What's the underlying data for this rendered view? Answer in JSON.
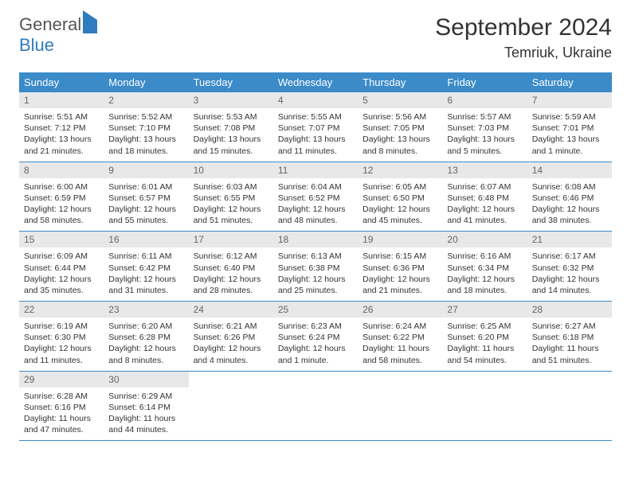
{
  "logo": {
    "part1": "General",
    "part2": "Blue"
  },
  "title": {
    "month": "September 2024",
    "location": "Temriuk, Ukraine"
  },
  "weekdays": [
    "Sunday",
    "Monday",
    "Tuesday",
    "Wednesday",
    "Thursday",
    "Friday",
    "Saturday"
  ],
  "colors": {
    "header_bg": "#3b8bc9",
    "header_text": "#ffffff",
    "daynum_bg": "#e8e8e8",
    "row_border": "#3b8bc9",
    "logo_accent": "#2f7bbf"
  },
  "days": [
    {
      "n": 1,
      "sr": "5:51 AM",
      "ss": "7:12 PM",
      "dl": "13 hours and 21 minutes."
    },
    {
      "n": 2,
      "sr": "5:52 AM",
      "ss": "7:10 PM",
      "dl": "13 hours and 18 minutes."
    },
    {
      "n": 3,
      "sr": "5:53 AM",
      "ss": "7:08 PM",
      "dl": "13 hours and 15 minutes."
    },
    {
      "n": 4,
      "sr": "5:55 AM",
      "ss": "7:07 PM",
      "dl": "13 hours and 11 minutes."
    },
    {
      "n": 5,
      "sr": "5:56 AM",
      "ss": "7:05 PM",
      "dl": "13 hours and 8 minutes."
    },
    {
      "n": 6,
      "sr": "5:57 AM",
      "ss": "7:03 PM",
      "dl": "13 hours and 5 minutes."
    },
    {
      "n": 7,
      "sr": "5:59 AM",
      "ss": "7:01 PM",
      "dl": "13 hours and 1 minute."
    },
    {
      "n": 8,
      "sr": "6:00 AM",
      "ss": "6:59 PM",
      "dl": "12 hours and 58 minutes."
    },
    {
      "n": 9,
      "sr": "6:01 AM",
      "ss": "6:57 PM",
      "dl": "12 hours and 55 minutes."
    },
    {
      "n": 10,
      "sr": "6:03 AM",
      "ss": "6:55 PM",
      "dl": "12 hours and 51 minutes."
    },
    {
      "n": 11,
      "sr": "6:04 AM",
      "ss": "6:52 PM",
      "dl": "12 hours and 48 minutes."
    },
    {
      "n": 12,
      "sr": "6:05 AM",
      "ss": "6:50 PM",
      "dl": "12 hours and 45 minutes."
    },
    {
      "n": 13,
      "sr": "6:07 AM",
      "ss": "6:48 PM",
      "dl": "12 hours and 41 minutes."
    },
    {
      "n": 14,
      "sr": "6:08 AM",
      "ss": "6:46 PM",
      "dl": "12 hours and 38 minutes."
    },
    {
      "n": 15,
      "sr": "6:09 AM",
      "ss": "6:44 PM",
      "dl": "12 hours and 35 minutes."
    },
    {
      "n": 16,
      "sr": "6:11 AM",
      "ss": "6:42 PM",
      "dl": "12 hours and 31 minutes."
    },
    {
      "n": 17,
      "sr": "6:12 AM",
      "ss": "6:40 PM",
      "dl": "12 hours and 28 minutes."
    },
    {
      "n": 18,
      "sr": "6:13 AM",
      "ss": "6:38 PM",
      "dl": "12 hours and 25 minutes."
    },
    {
      "n": 19,
      "sr": "6:15 AM",
      "ss": "6:36 PM",
      "dl": "12 hours and 21 minutes."
    },
    {
      "n": 20,
      "sr": "6:16 AM",
      "ss": "6:34 PM",
      "dl": "12 hours and 18 minutes."
    },
    {
      "n": 21,
      "sr": "6:17 AM",
      "ss": "6:32 PM",
      "dl": "12 hours and 14 minutes."
    },
    {
      "n": 22,
      "sr": "6:19 AM",
      "ss": "6:30 PM",
      "dl": "12 hours and 11 minutes."
    },
    {
      "n": 23,
      "sr": "6:20 AM",
      "ss": "6:28 PM",
      "dl": "12 hours and 8 minutes."
    },
    {
      "n": 24,
      "sr": "6:21 AM",
      "ss": "6:26 PM",
      "dl": "12 hours and 4 minutes."
    },
    {
      "n": 25,
      "sr": "6:23 AM",
      "ss": "6:24 PM",
      "dl": "12 hours and 1 minute."
    },
    {
      "n": 26,
      "sr": "6:24 AM",
      "ss": "6:22 PM",
      "dl": "11 hours and 58 minutes."
    },
    {
      "n": 27,
      "sr": "6:25 AM",
      "ss": "6:20 PM",
      "dl": "11 hours and 54 minutes."
    },
    {
      "n": 28,
      "sr": "6:27 AM",
      "ss": "6:18 PM",
      "dl": "11 hours and 51 minutes."
    },
    {
      "n": 29,
      "sr": "6:28 AM",
      "ss": "6:16 PM",
      "dl": "11 hours and 47 minutes."
    },
    {
      "n": 30,
      "sr": "6:29 AM",
      "ss": "6:14 PM",
      "dl": "11 hours and 44 minutes."
    }
  ],
  "labels": {
    "sunrise": "Sunrise:",
    "sunset": "Sunset:",
    "daylight": "Daylight:"
  },
  "layout": {
    "startWeekday": 0,
    "totalCells": 35
  }
}
